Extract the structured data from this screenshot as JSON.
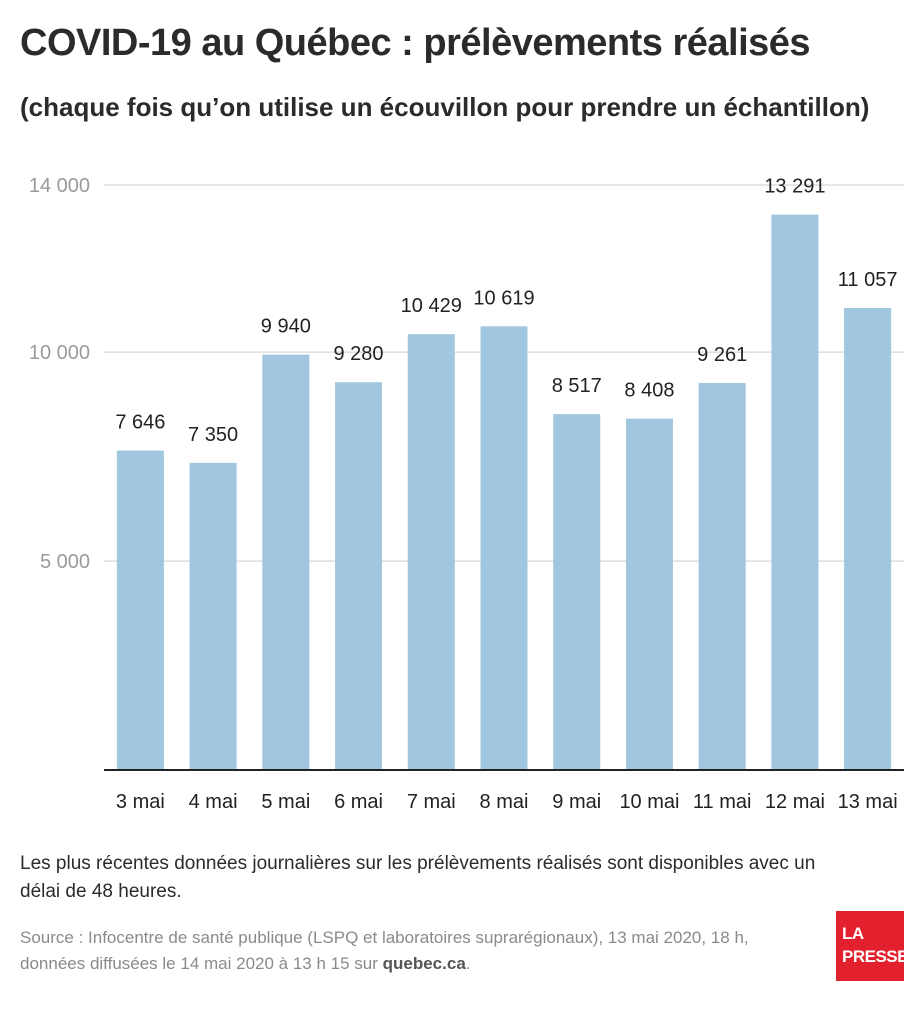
{
  "title": "COVID-19 au Québec : prélèvements réalisés",
  "subtitle": "(chaque fois qu’on utilise un écouvillon pour prendre un échantillon)",
  "note": "Les plus récentes données journalières sur les prélèvements réalisés sont disponibles avec un délai de 48 heures.",
  "source": {
    "text": "Source : Infocentre de santé publique (LSPQ et laboratoires suprarégionaux), 13 mai 2020, 18 h, données diffusées le 14 mai 2020 à 13 h 15 sur ",
    "link": "quebec.ca",
    "end": "."
  },
  "logo": {
    "line1": "LA",
    "line2": "PRESSE"
  },
  "colors": {
    "bar": "#a0c7df",
    "grid": "#dddddd",
    "axis": "#222222",
    "tick_label": "#9a9a9a"
  },
  "chart_data": {
    "type": "bar",
    "categories": [
      "3 mai",
      "4 mai",
      "5 mai",
      "6 mai",
      "7 mai",
      "8 mai",
      "9 mai",
      "10 mai",
      "11 mai",
      "12 mai",
      "13 mai"
    ],
    "values": [
      7646,
      7350,
      9940,
      9280,
      10429,
      10619,
      8517,
      8408,
      9261,
      13291,
      11057
    ],
    "value_labels": [
      "7 646",
      "7 350",
      "9 940",
      "9 280",
      "10 429",
      "10 619",
      "8 517",
      "8 408",
      "9 261",
      "13 291",
      "11 057"
    ],
    "yticks": [
      5000,
      10000,
      14000
    ],
    "ytick_labels": [
      "5 000",
      "10 000",
      "14 000"
    ],
    "ylim": [
      0,
      14000
    ],
    "grid": true,
    "xlabel": "",
    "ylabel": ""
  }
}
